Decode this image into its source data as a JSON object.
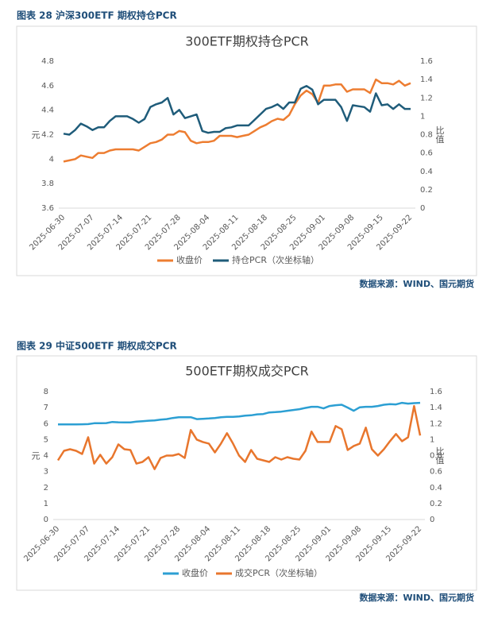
{
  "chart_data": [
    {
      "type": "line",
      "caption": "图表 28 沪深300ETF 期权持仓PCR",
      "title": "300ETF期权持仓PCR",
      "source": "数据来源：WIND、国元期货",
      "ylabel": "元",
      "y2label": "比值",
      "legend": "bottom",
      "grid": false,
      "categories": [
        "2025-06-30",
        null,
        null,
        null,
        null,
        "2025-07-07",
        null,
        null,
        null,
        null,
        "2025-07-14",
        null,
        null,
        null,
        null,
        "2025-07-21",
        null,
        null,
        null,
        null,
        "2025-07-28",
        null,
        null,
        null,
        null,
        "2025-08-04",
        null,
        null,
        null,
        null,
        "2025-08-11",
        null,
        null,
        null,
        null,
        "2025-08-18",
        null,
        null,
        null,
        null,
        "2025-08-25",
        null,
        null,
        null,
        null,
        "2025-09-01",
        null,
        null,
        null,
        null,
        "2025-09-08",
        null,
        null,
        null,
        null,
        "2025-09-15",
        null,
        null,
        null,
        null,
        "2025-09-22"
      ],
      "ylim": [
        3.6,
        4.8
      ],
      "yticks": [
        3.6,
        3.8,
        4,
        4.2,
        4.4,
        4.6,
        4.8
      ],
      "y2lim": [
        0,
        1.6
      ],
      "y2ticks": [
        0,
        0.2,
        0.4,
        0.6,
        0.8,
        1,
        1.2,
        1.4,
        1.6
      ],
      "series": [
        {
          "name": "收盘价",
          "color": "#ed7d31",
          "values": [
            3.98,
            3.99,
            4.0,
            4.03,
            4.02,
            4.01,
            4.05,
            4.05,
            4.07,
            4.08,
            4.08,
            4.08,
            4.08,
            4.07,
            4.1,
            4.13,
            4.14,
            4.16,
            4.2,
            4.2,
            4.23,
            4.22,
            4.15,
            4.13,
            4.14,
            4.14,
            4.15,
            4.19,
            4.19,
            4.19,
            4.18,
            4.19,
            4.2,
            4.23,
            4.26,
            4.28,
            4.31,
            4.33,
            4.32,
            4.36,
            4.45,
            4.52,
            4.56,
            4.53,
            4.46,
            4.6,
            4.6,
            4.61,
            4.61,
            4.55,
            4.57,
            4.57,
            4.57,
            4.54,
            4.65,
            4.62,
            4.62,
            4.61,
            4.64,
            4.6,
            4.62
          ]
        },
        {
          "name": "持仓PCR（次坐标轴）",
          "color": "#1f5c7a",
          "axis": "y2",
          "values": [
            0.81,
            0.8,
            0.85,
            0.92,
            0.89,
            0.85,
            0.88,
            0.88,
            0.95,
            1.0,
            1.0,
            1.0,
            0.97,
            0.93,
            0.97,
            1.1,
            1.13,
            1.15,
            1.2,
            1.02,
            1.07,
            0.98,
            1.0,
            1.02,
            0.84,
            0.82,
            0.83,
            0.83,
            0.87,
            0.88,
            0.9,
            0.9,
            0.9,
            0.96,
            1.02,
            1.08,
            1.1,
            1.13,
            1.08,
            1.15,
            1.15,
            1.3,
            1.33,
            1.29,
            1.13,
            1.18,
            1.18,
            1.18,
            1.1,
            0.95,
            1.12,
            1.11,
            1.1,
            1.05,
            1.25,
            1.12,
            1.13,
            1.08,
            1.13,
            1.08,
            1.08
          ]
        }
      ]
    },
    {
      "type": "line",
      "caption": "图表 29 中证500ETF 期权成交PCR",
      "title": "500ETF期权成交PCR",
      "source": "数据来源：WIND、国元期货",
      "ylabel": "元",
      "y2label": "比值",
      "legend": "bottom",
      "grid": false,
      "categories": [
        "2025-06-30",
        null,
        null,
        null,
        null,
        "2025-07-07",
        null,
        null,
        null,
        null,
        "2025-07-14",
        null,
        null,
        null,
        null,
        "2025-07-21",
        null,
        null,
        null,
        null,
        "2025-07-28",
        null,
        null,
        null,
        null,
        "2025-08-04",
        null,
        null,
        null,
        null,
        "2025-08-11",
        null,
        null,
        null,
        null,
        "2025-08-18",
        null,
        null,
        null,
        null,
        "2025-08-25",
        null,
        null,
        null,
        null,
        "2025-09-01",
        null,
        null,
        null,
        null,
        "2025-09-08",
        null,
        null,
        null,
        null,
        "2025-09-15",
        null,
        null,
        null,
        null,
        "2025-09-22"
      ],
      "ylim": [
        0,
        8
      ],
      "yticks": [
        0,
        1,
        2,
        3,
        4,
        5,
        6,
        7,
        8
      ],
      "y2lim": [
        0,
        1.6
      ],
      "y2ticks": [
        0,
        0.2,
        0.4,
        0.6,
        0.8,
        1,
        1.2,
        1.4,
        1.6
      ],
      "series": [
        {
          "name": "收盘价",
          "color": "#2c9fd3",
          "values": [
            5.95,
            5.95,
            5.95,
            5.95,
            5.96,
            5.97,
            6.02,
            6.02,
            6.03,
            6.1,
            6.08,
            6.07,
            6.07,
            6.12,
            6.15,
            6.18,
            6.2,
            6.25,
            6.28,
            6.35,
            6.4,
            6.4,
            6.4,
            6.28,
            6.3,
            6.32,
            6.35,
            6.4,
            6.42,
            6.42,
            6.45,
            6.5,
            6.52,
            6.58,
            6.6,
            6.7,
            6.72,
            6.75,
            6.8,
            6.85,
            6.9,
            6.98,
            7.05,
            7.05,
            6.95,
            7.1,
            7.15,
            7.18,
            7.0,
            6.8,
            7.02,
            7.05,
            7.05,
            7.1,
            7.18,
            7.22,
            7.2,
            7.3,
            7.25,
            7.28,
            7.3
          ]
        },
        {
          "name": "成交PCR（次坐标轴）",
          "color": "#e8762d",
          "axis": "y2",
          "values": [
            0.74,
            0.86,
            0.88,
            0.86,
            0.82,
            1.03,
            0.7,
            0.81,
            0.7,
            0.78,
            0.94,
            0.88,
            0.87,
            0.7,
            0.72,
            0.78,
            0.63,
            0.77,
            0.8,
            0.8,
            0.82,
            0.77,
            1.12,
            1.0,
            0.97,
            0.95,
            0.84,
            0.95,
            1.08,
            0.95,
            0.8,
            0.72,
            0.87,
            0.76,
            0.74,
            0.72,
            0.78,
            0.75,
            0.78,
            0.76,
            0.75,
            0.86,
            1.1,
            0.97,
            0.97,
            0.97,
            1.17,
            1.13,
            0.87,
            0.92,
            0.95,
            1.15,
            0.88,
            0.8,
            0.88,
            0.98,
            1.07,
            0.98,
            1.03,
            1.42,
            1.05
          ]
        }
      ]
    }
  ]
}
